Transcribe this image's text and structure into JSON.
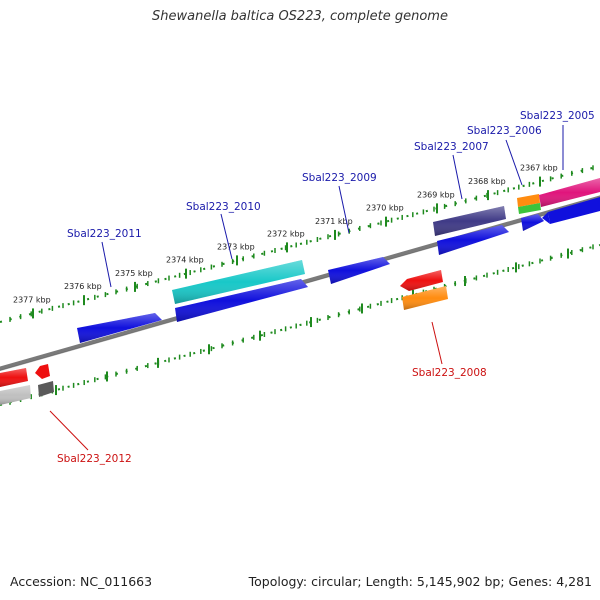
{
  "header": {
    "title": "Shewanella baltica OS223, complete genome"
  },
  "footer": {
    "accession": "Accession: NC_011663",
    "topology": "Topology: circular; Length: 5,145,902 bp; Genes: 4,281"
  },
  "colors": {
    "backbone": "#7a7a7a",
    "ruler": "#1e8a1e",
    "forward_label": "#1a1aaa",
    "reverse_label": "#cc1111",
    "gene_blue": "#1010dd",
    "gene_cyan": "#18c8c8",
    "gene_navy": "#3f3a86",
    "gene_red": "#ee1010",
    "gene_orange": "#ff8c10",
    "gene_magenta": "#e0147c",
    "gene_green": "#3cc43c",
    "gene_gray": "#5a5a5a",
    "gene_lightgray": "#c0c0c0"
  },
  "ruler_ticks": [
    "2367 kbp",
    "2368 kbp",
    "2369 kbp",
    "2370 kbp",
    "2371 kbp",
    "2372 kbp",
    "2373 kbp",
    "2374 kbp",
    "2375 kbp",
    "2376 kbp",
    "2377 kbp"
  ],
  "gene_labels": [
    {
      "text": "Sbal223_2005",
      "strand": "forward"
    },
    {
      "text": "Sbal223_2006",
      "strand": "forward"
    },
    {
      "text": "Sbal223_2007",
      "strand": "forward"
    },
    {
      "text": "Sbal223_2009",
      "strand": "forward"
    },
    {
      "text": "Sbal223_2010",
      "strand": "forward"
    },
    {
      "text": "Sbal223_2011",
      "strand": "forward"
    },
    {
      "text": "Sbal223_2008",
      "strand": "reverse"
    },
    {
      "text": "Sbal223_2012",
      "strand": "reverse"
    }
  ]
}
